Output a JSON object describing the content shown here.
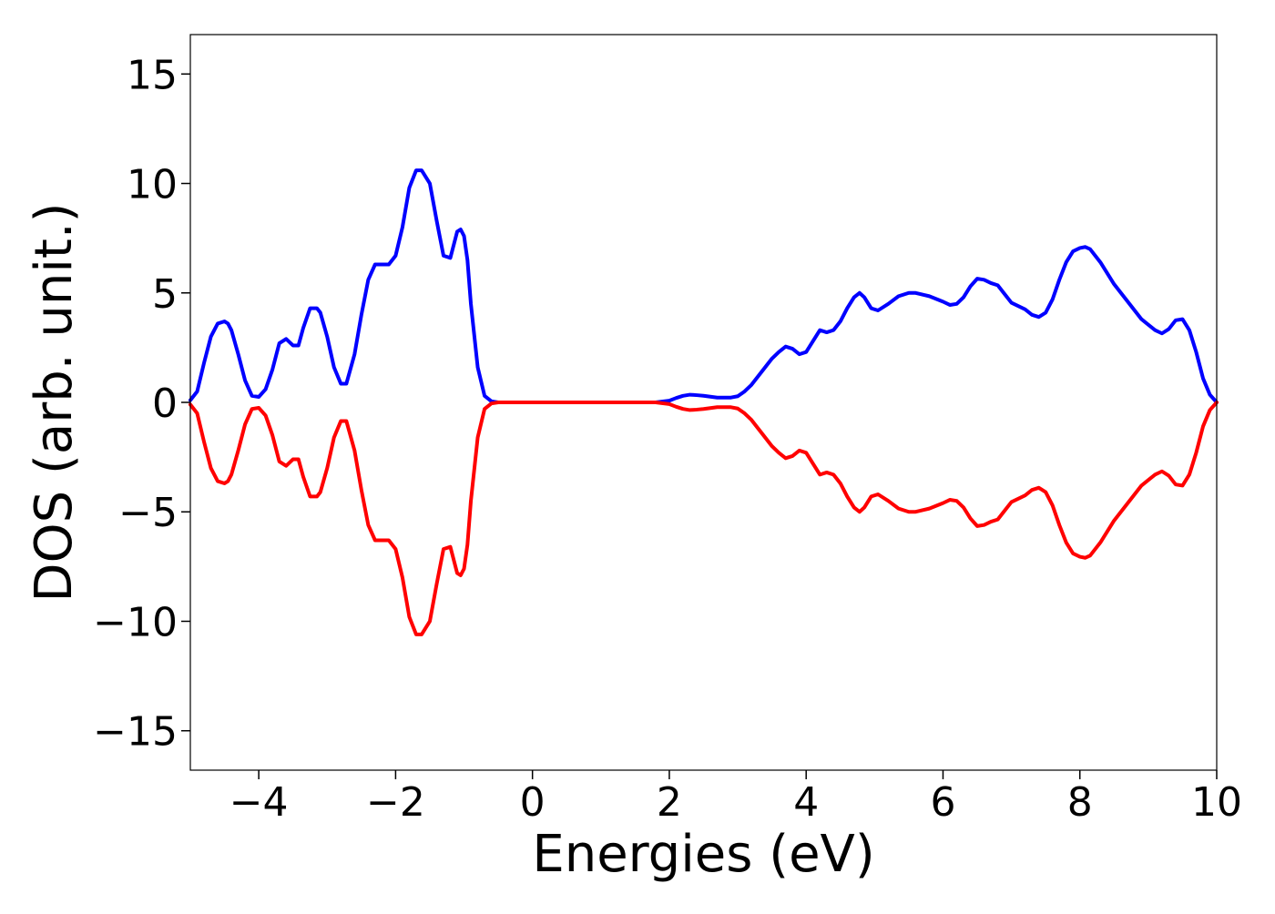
{
  "chart_data": {
    "type": "line",
    "title": "",
    "xlabel": "Energies (eV)",
    "ylabel": "DOS (arb. unit.)",
    "xlim": [
      -5,
      10
    ],
    "ylim": [
      -16.8,
      16.8
    ],
    "x_ticks": [
      -4,
      -2,
      0,
      2,
      4,
      6,
      8,
      10
    ],
    "x_tick_labels": [
      "−4",
      "−2",
      "0",
      "2",
      "4",
      "6",
      "8",
      "10"
    ],
    "y_ticks": [
      -15,
      -10,
      -5,
      0,
      5,
      10,
      15
    ],
    "y_tick_labels": [
      "−15",
      "−10",
      "−5",
      "0",
      "5",
      "10",
      "15"
    ],
    "grid": false,
    "legend": false,
    "series": [
      {
        "color": "#0000ff",
        "x": [
          -5.0,
          -4.9,
          -4.8,
          -4.7,
          -4.6,
          -4.5,
          -4.45,
          -4.4,
          -4.3,
          -4.2,
          -4.1,
          -4.0,
          -3.9,
          -3.8,
          -3.7,
          -3.6,
          -3.5,
          -3.42,
          -3.35,
          -3.25,
          -3.15,
          -3.1,
          -3.0,
          -2.9,
          -2.8,
          -2.72,
          -2.6,
          -2.5,
          -2.4,
          -2.3,
          -2.2,
          -2.1,
          -2.0,
          -1.9,
          -1.8,
          -1.7,
          -1.62,
          -1.5,
          -1.4,
          -1.3,
          -1.2,
          -1.1,
          -1.05,
          -1.0,
          -0.95,
          -0.9,
          -0.8,
          -0.7,
          -0.6,
          -0.5,
          -0.4,
          0.0,
          1.0,
          1.8,
          2.0,
          2.1,
          2.2,
          2.3,
          2.4,
          2.5,
          2.7,
          2.9,
          3.0,
          3.1,
          3.2,
          3.3,
          3.4,
          3.5,
          3.6,
          3.7,
          3.8,
          3.9,
          4.0,
          4.1,
          4.2,
          4.3,
          4.4,
          4.5,
          4.6,
          4.7,
          4.78,
          4.85,
          4.95,
          5.05,
          5.2,
          5.35,
          5.5,
          5.6,
          5.8,
          6.0,
          6.1,
          6.2,
          6.3,
          6.4,
          6.5,
          6.6,
          6.7,
          6.8,
          6.9,
          7.0,
          7.1,
          7.2,
          7.3,
          7.4,
          7.5,
          7.6,
          7.7,
          7.8,
          7.9,
          8.0,
          8.08,
          8.15,
          8.3,
          8.5,
          8.7,
          8.9,
          9.0,
          9.1,
          9.2,
          9.3,
          9.4,
          9.5,
          9.6,
          9.7,
          9.8,
          9.9,
          10.0
        ],
        "y": [
          0.1,
          0.5,
          1.8,
          3.0,
          3.6,
          3.7,
          3.6,
          3.3,
          2.2,
          1.0,
          0.3,
          0.25,
          0.6,
          1.5,
          2.7,
          2.9,
          2.6,
          2.6,
          3.4,
          4.3,
          4.3,
          4.1,
          3.0,
          1.6,
          0.85,
          0.85,
          2.2,
          4.0,
          5.6,
          6.3,
          6.3,
          6.3,
          6.7,
          8.0,
          9.8,
          10.6,
          10.6,
          10.0,
          8.3,
          6.7,
          6.6,
          7.8,
          7.9,
          7.6,
          6.5,
          4.5,
          1.6,
          0.3,
          0.05,
          0.0,
          0.0,
          0.0,
          0.0,
          0.0,
          0.08,
          0.2,
          0.3,
          0.35,
          0.33,
          0.3,
          0.22,
          0.22,
          0.28,
          0.5,
          0.8,
          1.2,
          1.6,
          2.0,
          2.3,
          2.55,
          2.45,
          2.2,
          2.3,
          2.8,
          3.3,
          3.2,
          3.3,
          3.7,
          4.3,
          4.8,
          5.0,
          4.8,
          4.3,
          4.2,
          4.5,
          4.85,
          5.0,
          5.0,
          4.85,
          4.6,
          4.45,
          4.5,
          4.8,
          5.3,
          5.65,
          5.6,
          5.45,
          5.35,
          4.95,
          4.55,
          4.4,
          4.25,
          4.0,
          3.9,
          4.1,
          4.7,
          5.6,
          6.4,
          6.9,
          7.05,
          7.1,
          7.0,
          6.4,
          5.4,
          4.6,
          3.8,
          3.55,
          3.3,
          3.15,
          3.35,
          3.75,
          3.8,
          3.3,
          2.3,
          1.1,
          0.35,
          0.0
        ]
      },
      {
        "color": "#ff0000",
        "x": [
          -5.0,
          -4.9,
          -4.8,
          -4.7,
          -4.6,
          -4.5,
          -4.45,
          -4.4,
          -4.3,
          -4.2,
          -4.1,
          -4.0,
          -3.9,
          -3.8,
          -3.7,
          -3.6,
          -3.5,
          -3.42,
          -3.35,
          -3.25,
          -3.15,
          -3.1,
          -3.0,
          -2.9,
          -2.8,
          -2.72,
          -2.6,
          -2.5,
          -2.4,
          -2.3,
          -2.2,
          -2.1,
          -2.0,
          -1.9,
          -1.8,
          -1.7,
          -1.62,
          -1.5,
          -1.4,
          -1.3,
          -1.2,
          -1.1,
          -1.05,
          -1.0,
          -0.95,
          -0.9,
          -0.8,
          -0.7,
          -0.6,
          -0.5,
          -0.4,
          0.0,
          1.0,
          1.8,
          2.0,
          2.1,
          2.2,
          2.3,
          2.4,
          2.5,
          2.7,
          2.9,
          3.0,
          3.1,
          3.2,
          3.3,
          3.4,
          3.5,
          3.6,
          3.7,
          3.8,
          3.9,
          4.0,
          4.1,
          4.2,
          4.3,
          4.4,
          4.5,
          4.6,
          4.7,
          4.78,
          4.85,
          4.95,
          5.05,
          5.2,
          5.35,
          5.5,
          5.6,
          5.8,
          6.0,
          6.1,
          6.2,
          6.3,
          6.4,
          6.5,
          6.6,
          6.7,
          6.8,
          6.9,
          7.0,
          7.1,
          7.2,
          7.3,
          7.4,
          7.5,
          7.6,
          7.7,
          7.8,
          7.9,
          8.0,
          8.08,
          8.15,
          8.3,
          8.5,
          8.7,
          8.9,
          9.0,
          9.1,
          9.2,
          9.3,
          9.4,
          9.5,
          9.6,
          9.7,
          9.8,
          9.9,
          10.0
        ],
        "y": [
          -0.1,
          -0.5,
          -1.8,
          -3.0,
          -3.6,
          -3.7,
          -3.6,
          -3.3,
          -2.2,
          -1.0,
          -0.3,
          -0.25,
          -0.6,
          -1.5,
          -2.7,
          -2.9,
          -2.6,
          -2.6,
          -3.4,
          -4.3,
          -4.3,
          -4.1,
          -3.0,
          -1.6,
          -0.85,
          -0.85,
          -2.2,
          -4.0,
          -5.6,
          -6.3,
          -6.3,
          -6.3,
          -6.7,
          -8.0,
          -9.8,
          -10.6,
          -10.6,
          -10.0,
          -8.3,
          -6.7,
          -6.6,
          -7.8,
          -7.9,
          -7.6,
          -6.5,
          -4.5,
          -1.6,
          -0.3,
          -0.05,
          0.0,
          0.0,
          0.0,
          0.0,
          0.0,
          -0.08,
          -0.2,
          -0.3,
          -0.35,
          -0.33,
          -0.3,
          -0.22,
          -0.22,
          -0.28,
          -0.5,
          -0.8,
          -1.2,
          -1.6,
          -2.0,
          -2.3,
          -2.55,
          -2.45,
          -2.2,
          -2.3,
          -2.8,
          -3.3,
          -3.2,
          -3.3,
          -3.7,
          -4.3,
          -4.8,
          -5.0,
          -4.8,
          -4.3,
          -4.2,
          -4.5,
          -4.85,
          -5.0,
          -5.0,
          -4.85,
          -4.6,
          -4.45,
          -4.5,
          -4.8,
          -5.3,
          -5.65,
          -5.6,
          -5.45,
          -5.35,
          -4.95,
          -4.55,
          -4.4,
          -4.25,
          -4.0,
          -3.9,
          -4.1,
          -4.7,
          -5.6,
          -6.4,
          -6.9,
          -7.05,
          -7.1,
          -7.0,
          -6.4,
          -5.4,
          -4.6,
          -3.8,
          -3.55,
          -3.3,
          -3.15,
          -3.35,
          -3.75,
          -3.8,
          -3.3,
          -2.3,
          -1.1,
          -0.35,
          0.0
        ]
      }
    ]
  }
}
